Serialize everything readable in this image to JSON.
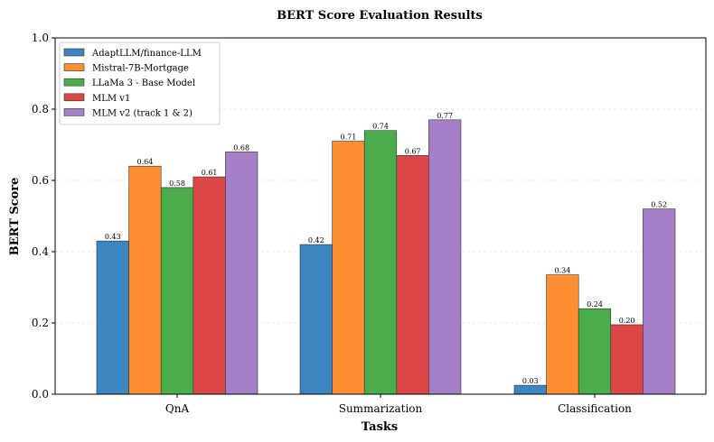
{
  "chart_data": {
    "type": "bar",
    "title": "BERT Score Evaluation Results",
    "xlabel": "Tasks",
    "ylabel": "BERT Score",
    "ylim": [
      0,
      1.0
    ],
    "yticks": [
      "0.0",
      "0.2",
      "0.4",
      "0.6",
      "0.8",
      "1.0"
    ],
    "categories": [
      "QnA",
      "Summarization",
      "Classification"
    ],
    "grid": true,
    "legend_position": "top-left",
    "series": [
      {
        "name": "AdaptLLM/finance-LLM",
        "color": "#3d85bf",
        "values": [
          0.43,
          0.42,
          0.025
        ],
        "labels": [
          "0.43",
          "0.42",
          "0.03"
        ]
      },
      {
        "name": "Mistral-7B-Mortgage",
        "color": "#fd8f32",
        "values": [
          0.64,
          0.71,
          0.335
        ],
        "labels": [
          "0.64",
          "0.71",
          "0.34"
        ]
      },
      {
        "name": "LLaMa 3 - Base Model",
        "color": "#4aac4a",
        "values": [
          0.58,
          0.74,
          0.24
        ],
        "labels": [
          "0.58",
          "0.74",
          "0.24"
        ]
      },
      {
        "name": "MLM v1",
        "color": "#dc4646",
        "values": [
          0.61,
          0.67,
          0.195
        ],
        "labels": [
          "0.61",
          "0.67",
          "0.20"
        ]
      },
      {
        "name": "MLM v2 (track 1 & 2)",
        "color": "#a57fc8",
        "values": [
          0.68,
          0.77,
          0.52
        ],
        "labels": [
          "0.68",
          "0.77",
          "0.52"
        ]
      }
    ]
  }
}
